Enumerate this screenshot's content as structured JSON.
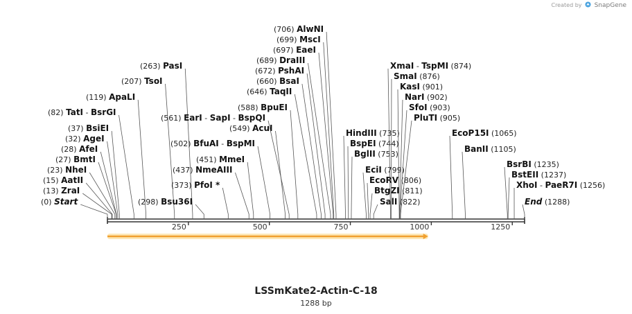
{
  "credit": {
    "text": "Created by",
    "brand": "SnapGene"
  },
  "title": "LSSmKate2-Actin-C-18",
  "subtitle": "1288 bp",
  "map": {
    "length": 1288,
    "axis_ticks": [
      "250",
      "500",
      "750",
      "1000",
      "1250"
    ],
    "feature": {
      "name": "orange-arrow-feature",
      "start": 0,
      "end": 990,
      "direction": "forward",
      "color": "#f0a030"
    },
    "colors": {
      "line": "#333333",
      "feature": "#f0a030",
      "feature_glow": "#fde8b8"
    }
  },
  "labels": [
    {
      "pos": "(0)",
      "enz": [
        "Start"
      ],
      "site": 0,
      "side": "left",
      "italic": true
    },
    {
      "pos": "(13)",
      "enz": [
        "ZraI"
      ],
      "site": 13,
      "side": "left"
    },
    {
      "pos": "(15)",
      "enz": [
        "AatII"
      ],
      "site": 15,
      "side": "left"
    },
    {
      "pos": "(23)",
      "enz": [
        "NheI"
      ],
      "site": 23,
      "side": "left"
    },
    {
      "pos": "(27)",
      "enz": [
        "BmtI"
      ],
      "site": 27,
      "side": "left"
    },
    {
      "pos": "(28)",
      "enz": [
        "AfeI"
      ],
      "site": 28,
      "side": "left"
    },
    {
      "pos": "(32)",
      "enz": [
        "AgeI"
      ],
      "site": 32,
      "side": "left"
    },
    {
      "pos": "(37)",
      "enz": [
        "BsiEI"
      ],
      "site": 37,
      "side": "left"
    },
    {
      "pos": "(82)",
      "enz": [
        "TatI",
        "BsrGI"
      ],
      "site": 82,
      "side": "left"
    },
    {
      "pos": "(119)",
      "enz": [
        "ApaLI"
      ],
      "site": 119,
      "side": "left"
    },
    {
      "pos": "(207)",
      "enz": [
        "TsoI"
      ],
      "site": 207,
      "side": "left"
    },
    {
      "pos": "(263)",
      "enz": [
        "PasI"
      ],
      "site": 263,
      "side": "left"
    },
    {
      "pos": "(298)",
      "enz": [
        "Bsu36I"
      ],
      "site": 298,
      "side": "left"
    },
    {
      "pos": "(373)",
      "enz": [
        "PfoI *"
      ],
      "site": 373,
      "side": "left"
    },
    {
      "pos": "(437)",
      "enz": [
        "NmeAIII"
      ],
      "site": 437,
      "side": "left"
    },
    {
      "pos": "(451)",
      "enz": [
        "MmeI"
      ],
      "site": 451,
      "side": "left"
    },
    {
      "pos": "(502)",
      "enz": [
        "BfuAI",
        "BspMI"
      ],
      "site": 502,
      "side": "left"
    },
    {
      "pos": "(549)",
      "enz": [
        "AcuI"
      ],
      "site": 549,
      "side": "left"
    },
    {
      "pos": "(561)",
      "enz": [
        "EarI",
        "SapI",
        "BspQI"
      ],
      "site": 561,
      "side": "left"
    },
    {
      "pos": "(588)",
      "enz": [
        "BpuEI"
      ],
      "site": 588,
      "side": "left"
    },
    {
      "pos": "(646)",
      "enz": [
        "TaqII"
      ],
      "site": 646,
      "side": "left"
    },
    {
      "pos": "(660)",
      "enz": [
        "BsaI"
      ],
      "site": 660,
      "side": "left"
    },
    {
      "pos": "(672)",
      "enz": [
        "PshAI"
      ],
      "site": 672,
      "side": "left"
    },
    {
      "pos": "(689)",
      "enz": [
        "DraIII"
      ],
      "site": 689,
      "side": "left"
    },
    {
      "pos": "(697)",
      "enz": [
        "EaeI"
      ],
      "site": 697,
      "side": "left"
    },
    {
      "pos": "(699)",
      "enz": [
        "MscI"
      ],
      "site": 699,
      "side": "left"
    },
    {
      "pos": "(706)",
      "enz": [
        "AlwNI"
      ],
      "site": 706,
      "side": "left"
    },
    {
      "pos": "(735)",
      "enz": [
        "HindIII"
      ],
      "site": 735,
      "side": "right"
    },
    {
      "pos": "(744)",
      "enz": [
        "BspEI"
      ],
      "site": 744,
      "side": "right"
    },
    {
      "pos": "(753)",
      "enz": [
        "BglII"
      ],
      "site": 753,
      "side": "right"
    },
    {
      "pos": "(799)",
      "enz": [
        "EciI"
      ],
      "site": 799,
      "side": "right"
    },
    {
      "pos": "(806)",
      "enz": [
        "EcoRV"
      ],
      "site": 806,
      "side": "right"
    },
    {
      "pos": "(811)",
      "enz": [
        "BtgZI"
      ],
      "site": 811,
      "side": "right"
    },
    {
      "pos": "(822)",
      "enz": [
        "SalI"
      ],
      "site": 822,
      "side": "right"
    },
    {
      "pos": "(874)",
      "enz": [
        "XmaI",
        "TspMI"
      ],
      "site": 874,
      "side": "right"
    },
    {
      "pos": "(876)",
      "enz": [
        "SmaI"
      ],
      "site": 876,
      "side": "right"
    },
    {
      "pos": "(901)",
      "enz": [
        "KasI"
      ],
      "site": 901,
      "side": "right"
    },
    {
      "pos": "(902)",
      "enz": [
        "NarI"
      ],
      "site": 902,
      "side": "right"
    },
    {
      "pos": "(903)",
      "enz": [
        "SfoI"
      ],
      "site": 903,
      "side": "right"
    },
    {
      "pos": "(905)",
      "enz": [
        "PluTI"
      ],
      "site": 905,
      "side": "right"
    },
    {
      "pos": "(1065)",
      "enz": [
        "EcoP15I"
      ],
      "site": 1065,
      "side": "right"
    },
    {
      "pos": "(1105)",
      "enz": [
        "BanII"
      ],
      "site": 1105,
      "side": "right"
    },
    {
      "pos": "(1235)",
      "enz": [
        "BsrBI"
      ],
      "site": 1235,
      "side": "right"
    },
    {
      "pos": "(1237)",
      "enz": [
        "BstEII"
      ],
      "site": 1237,
      "side": "right"
    },
    {
      "pos": "(1256)",
      "enz": [
        "XhoI",
        "PaeR7I"
      ],
      "site": 1256,
      "side": "right"
    },
    {
      "pos": "(1288)",
      "enz": [
        "End"
      ],
      "site": 1288,
      "side": "right",
      "italic": true
    }
  ]
}
